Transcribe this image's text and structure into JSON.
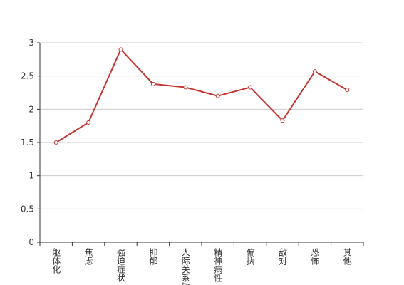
{
  "chart_data": {
    "type": "line",
    "categories": [
      "躯体化",
      "焦虑",
      "强迫症状",
      "抑郁",
      "人际关系敏感",
      "精神病性",
      "偏执",
      "敌对",
      "恐怖",
      "其他"
    ],
    "values": [
      1.5,
      1.8,
      2.9,
      2.38,
      2.33,
      2.2,
      2.33,
      1.83,
      2.57,
      2.29
    ],
    "color": "#c23531",
    "ylim": [
      0,
      3
    ],
    "yticks": [
      0,
      0.5,
      1,
      1.5,
      2,
      2.5,
      3
    ],
    "grid": true
  }
}
